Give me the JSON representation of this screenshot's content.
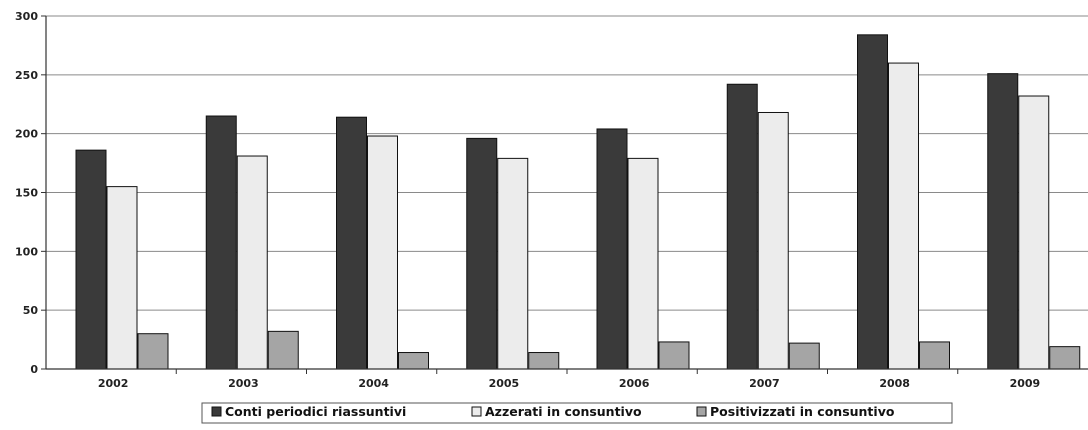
{
  "chart_data": {
    "type": "bar",
    "title": "",
    "xlabel": "",
    "ylabel": "",
    "ylim": [
      0,
      300
    ],
    "yticks": [
      0,
      50,
      100,
      150,
      200,
      250,
      300
    ],
    "grid": true,
    "legend_position": "bottom",
    "categories": [
      "2002",
      "2003",
      "2004",
      "2005",
      "2006",
      "2007",
      "2008",
      "2009"
    ],
    "series": [
      {
        "name": "Conti periodici riassuntivi",
        "color": "#3a3a3a",
        "values": [
          186,
          215,
          214,
          196,
          204,
          242,
          284,
          251
        ]
      },
      {
        "name": "Azzerati in consuntivo",
        "color": "#ececec",
        "values": [
          155,
          181,
          198,
          179,
          179,
          218,
          260,
          232
        ]
      },
      {
        "name": "Positivizzati in consuntivo",
        "color": "#a5a5a5",
        "values": [
          30,
          32,
          14,
          14,
          23,
          22,
          23,
          19
        ]
      }
    ]
  }
}
